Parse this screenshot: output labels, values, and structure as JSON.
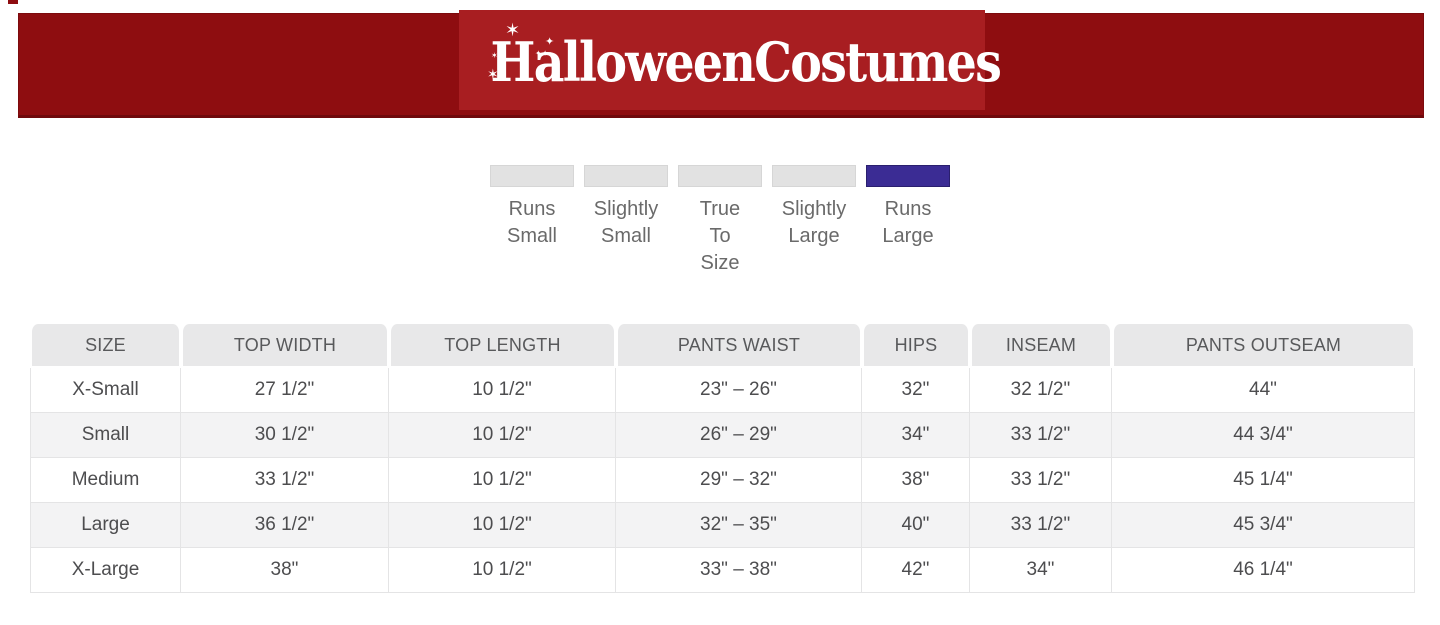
{
  "header": {
    "brand": "HalloweenCostumes",
    "band_color": "#8e0d10",
    "panel_color": "#a81e21"
  },
  "fit_scale": {
    "selected_index": 4,
    "selected_label": "Runs Large",
    "selected_color": "#3b2c94",
    "segment_color": "#e2e2e2",
    "options": [
      {
        "label": "Runs\nSmall"
      },
      {
        "label": "Slightly\nSmall"
      },
      {
        "label": "True\nTo\nSize"
      },
      {
        "label": "Slightly\nLarge"
      },
      {
        "label": "Runs\nLarge"
      }
    ]
  },
  "size_chart": {
    "columns": [
      "SIZE",
      "TOP WIDTH",
      "TOP LENGTH",
      "PANTS WAIST",
      "HIPS",
      "INSEAM",
      "PANTS OUTSEAM"
    ],
    "rows": [
      [
        "X-Small",
        "27 1/2\"",
        "10 1/2\"",
        "23\" – 26\"",
        "32\"",
        "32 1/2\"",
        "44\""
      ],
      [
        "Small",
        "30 1/2\"",
        "10 1/2\"",
        "26\" – 29\"",
        "34\"",
        "33 1/2\"",
        "44 3/4\""
      ],
      [
        "Medium",
        "33 1/2\"",
        "10 1/2\"",
        "29\" – 32\"",
        "38\"",
        "33 1/2\"",
        "45 1/4\""
      ],
      [
        "Large",
        "36 1/2\"",
        "10 1/2\"",
        "32\" – 35\"",
        "40\"",
        "33 1/2\"",
        "45 3/4\""
      ],
      [
        "X-Large",
        "38\"",
        "10 1/2\"",
        "33\" – 38\"",
        "42\"",
        "34\"",
        "46 1/4\""
      ]
    ]
  }
}
